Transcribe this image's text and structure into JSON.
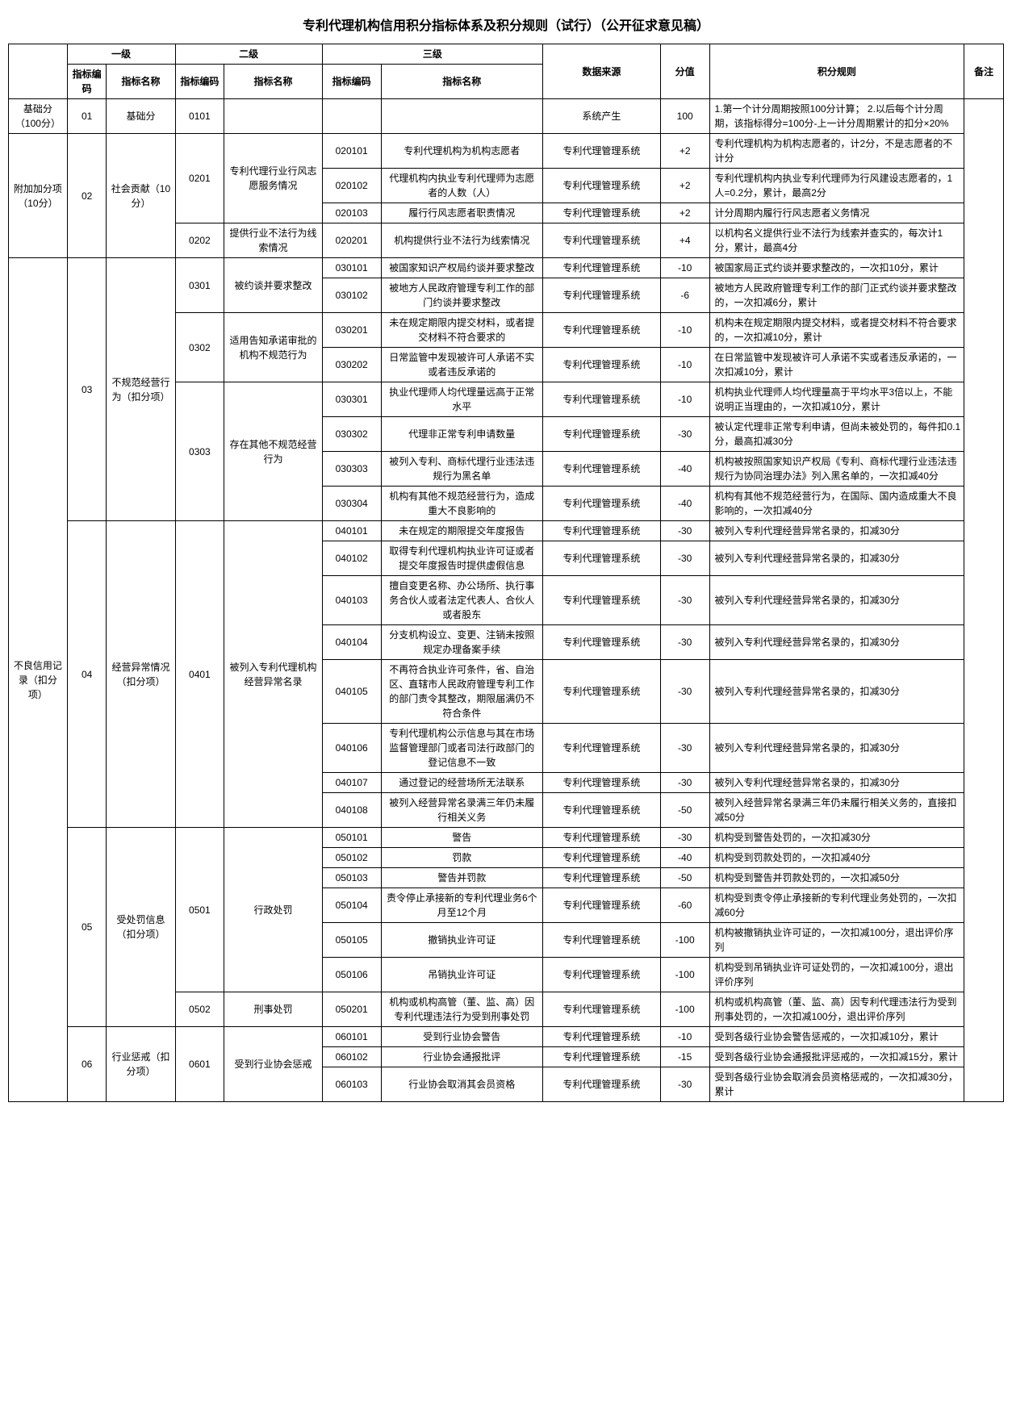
{
  "title": "专利代理机构信用积分指标体系及积分规则（试行）（公开征求意见稿）",
  "hdr": {
    "l1": "一级",
    "l2": "二级",
    "l3": "三级",
    "code": "指标编码",
    "name": "指标名称",
    "src": "数据来源",
    "score": "分值",
    "rule": "积分规则",
    "note": "备注"
  },
  "cat": {
    "base": "基础分（100分）",
    "bonus": "附加加分项（10分）",
    "bad": "不良信用记录（扣分项）"
  },
  "l1": {
    "n01": "基础分",
    "n02": "社会贡献（10分）",
    "n03": "不规范经营行为（扣分项）",
    "n04": "经营异常情况（扣分项）",
    "n05": "受处罚信息（扣分项）",
    "n06": "行业惩戒（扣分项）"
  },
  "l2": {
    "n0201": "专利代理行业行风志愿服务情况",
    "n0202": "提供行业不法行为线索情况",
    "n0301": "被约谈并要求整改",
    "n0302": "适用告知承诺审批的机构不规范行为",
    "n0303": "存在其他不规范经营行为",
    "n0401": "被列入专利代理机构经营异常名录",
    "n0501": "行政处罚",
    "n0502": "刑事处罚",
    "n0601": "受到行业协会惩戒"
  },
  "src": {
    "sys": "系统产生",
    "mgmt": "专利代理管理系统"
  },
  "r": {
    "base": {
      "score": "100",
      "rule": "1.第一个计分周期按照100分计算；\n2.以后每个计分周期，该指标得分=100分-上一计分周期累计的扣分×20%"
    },
    "020101": {
      "name": "专利代理机构为机构志愿者",
      "score": "+2",
      "rule": "专利代理机构为机构志愿者的，计2分，不是志愿者的不计分"
    },
    "020102": {
      "name": "代理机构内执业专利代理师为志愿者的人数（人）",
      "score": "+2",
      "rule": "专利代理机构内执业专利代理师为行风建设志愿者的，1人=0.2分，累计，最高2分"
    },
    "020103": {
      "name": "履行行风志愿者职责情况",
      "score": "+2",
      "rule": "计分周期内履行行风志愿者义务情况"
    },
    "020201": {
      "name": "机构提供行业不法行为线索情况",
      "score": "+4",
      "rule": "以机构名义提供行业不法行为线索并查实的，每次计1分，累计，最高4分"
    },
    "030101": {
      "name": "被国家知识产权局约谈并要求整改",
      "score": "-10",
      "rule": "被国家局正式约谈并要求整改的，一次扣10分，累计"
    },
    "030102": {
      "name": "被地方人民政府管理专利工作的部门约谈并要求整改",
      "score": "-6",
      "rule": "被地方人民政府管理专利工作的部门正式约谈并要求整改的，一次扣减6分，累计"
    },
    "030201": {
      "name": "未在规定期限内提交材料，或者提交材料不符合要求的",
      "score": "-10",
      "rule": "机构未在规定期限内提交材料，或者提交材料不符合要求的，一次扣减10分，累计"
    },
    "030202": {
      "name": "日常监管中发现被许可人承诺不实或者违反承诺的",
      "score": "-10",
      "rule": "在日常监管中发现被许可人承诺不实或者违反承诺的，一次扣减10分，累计"
    },
    "030301": {
      "name": "执业代理师人均代理量远高于正常水平",
      "score": "-10",
      "rule": "机构执业代理师人均代理量高于平均水平3倍以上，不能说明正当理由的，一次扣减10分，累计"
    },
    "030302": {
      "name": "代理非正常专利申请数量",
      "score": "-30",
      "rule": "被认定代理非正常专利申请，但尚未被处罚的，每件扣0.1分，最高扣减30分"
    },
    "030303": {
      "name": "被列入专利、商标代理行业违法违规行为黑名单",
      "score": "-40",
      "rule": "机构被按照国家知识产权局《专利、商标代理行业违法违规行为协同治理办法》列入黑名单的，一次扣减40分"
    },
    "030304": {
      "name": "机构有其他不规范经营行为，造成重大不良影响的",
      "score": "-40",
      "rule": "机构有其他不规范经营行为，在国际、国内造成重大不良影响的，一次扣减40分"
    },
    "040101": {
      "name": "未在规定的期限提交年度报告",
      "score": "-30",
      "rule": "被列入专利代理经营异常名录的，扣减30分"
    },
    "040102": {
      "name": "取得专利代理机构执业许可证或者提交年度报告时提供虚假信息",
      "score": "-30",
      "rule": "被列入专利代理经营异常名录的，扣减30分"
    },
    "040103": {
      "name": "擅自变更名称、办公场所、执行事务合伙人或者法定代表人、合伙人或者股东",
      "score": "-30",
      "rule": "被列入专利代理经营异常名录的，扣减30分"
    },
    "040104": {
      "name": "分支机构设立、变更、注销未按照规定办理备案手续",
      "score": "-30",
      "rule": "被列入专利代理经营异常名录的，扣减30分"
    },
    "040105": {
      "name": "不再符合执业许可条件，省、自治区、直辖市人民政府管理专利工作的部门责令其整改，期限届满仍不符合条件",
      "score": "-30",
      "rule": "被列入专利代理经营异常名录的，扣减30分"
    },
    "040106": {
      "name": "专利代理机构公示信息与其在市场监督管理部门或者司法行政部门的登记信息不一致",
      "score": "-30",
      "rule": "被列入专利代理经营异常名录的，扣减30分"
    },
    "040107": {
      "name": "通过登记的经营场所无法联系",
      "score": "-30",
      "rule": "被列入专利代理经营异常名录的，扣减30分"
    },
    "040108": {
      "name": "被列入经营异常名录满三年仍未履行相关义务",
      "score": "-50",
      "rule": "被列入经营异常名录满三年仍未履行相关义务的，直接扣减50分"
    },
    "050101": {
      "name": "警告",
      "score": "-30",
      "rule": "机构受到警告处罚的，一次扣减30分"
    },
    "050102": {
      "name": "罚款",
      "score": "-40",
      "rule": "机构受到罚款处罚的，一次扣减40分"
    },
    "050103": {
      "name": "警告并罚款",
      "score": "-50",
      "rule": "机构受到警告并罚款处罚的，一次扣减50分"
    },
    "050104": {
      "name": "责令停止承接新的专利代理业务6个月至12个月",
      "score": "-60",
      "rule": "机构受到责令停止承接新的专利代理业务处罚的，一次扣减60分"
    },
    "050105": {
      "name": "撤销执业许可证",
      "score": "-100",
      "rule": "机构被撤销执业许可证的，一次扣减100分，退出评价序列"
    },
    "050106": {
      "name": "吊销执业许可证",
      "score": "-100",
      "rule": "机构受到吊销执业许可证处罚的，一次扣减100分，退出评价序列"
    },
    "050201": {
      "name": "机构或机构高管（董、监、高）因专利代理违法行为受到刑事处罚",
      "score": "-100",
      "rule": "机构或机构高管（董、监、高）因专利代理违法行为受到刑事处罚的，一次扣减100分，退出评价序列"
    },
    "060101": {
      "name": "受到行业协会警告",
      "score": "-10",
      "rule": "受到各级行业协会警告惩戒的，一次扣减10分，累计"
    },
    "060102": {
      "name": "行业协会通报批评",
      "score": "-15",
      "rule": "受到各级行业协会通报批评惩戒的，一次扣减15分，累计"
    },
    "060103": {
      "name": "行业协会取消其会员资格",
      "score": "-30",
      "rule": "受到各级行业协会取消会员资格惩戒的，一次扣减30分，累计"
    }
  }
}
